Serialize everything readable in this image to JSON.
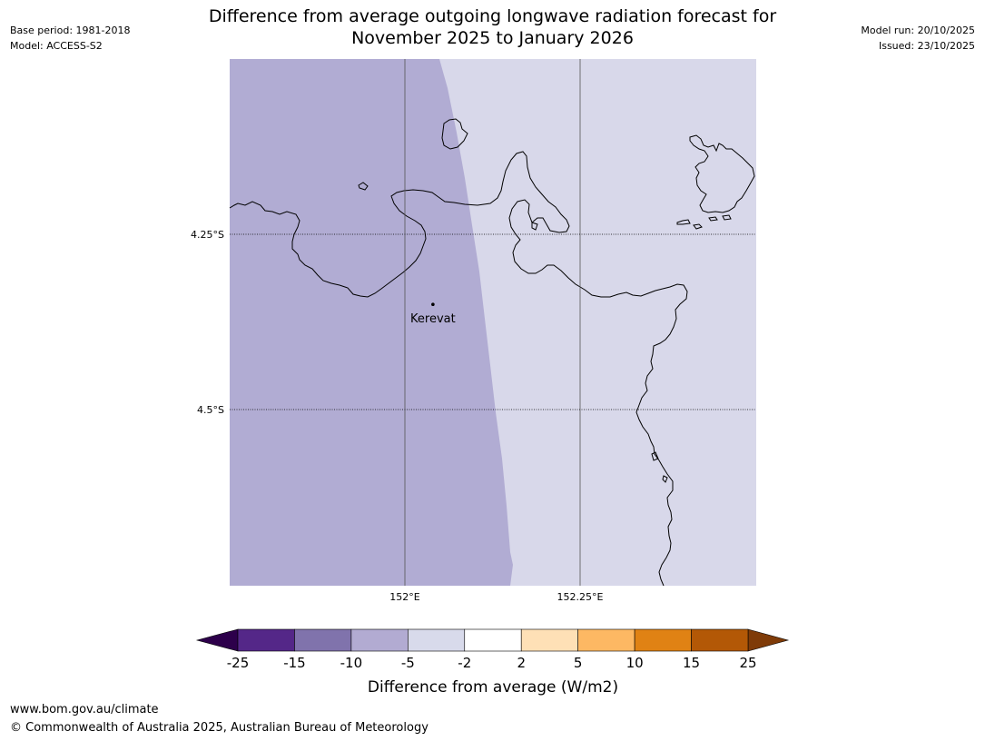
{
  "header": {
    "title_line1": "Difference from average outgoing longwave radiation forecast for",
    "title_line2": "November 2025 to January 2026",
    "base_period": "Base period: 1981-2018",
    "model": "Model: ACCESS-S2",
    "model_run": "Model run: 20/10/2025",
    "issued": "Issued: 23/10/2025"
  },
  "footer": {
    "url": "www.bom.gov.au/climate",
    "copyright": "© Commonwealth of Australia 2025, Australian Bureau of Meteorology"
  },
  "chart_data": {
    "type": "map",
    "lon_ticks": [
      {
        "value": 152.0,
        "label": "152°E"
      },
      {
        "value": 152.25,
        "label": "152.25°E"
      }
    ],
    "lat_ticks": [
      {
        "value": -4.25,
        "label": "4.25°S"
      },
      {
        "value": -4.5,
        "label": "4.5°S"
      }
    ],
    "places": [
      {
        "name": "Kerevat",
        "lon": 152.04,
        "lat": -4.35
      }
    ],
    "regions": [
      {
        "category": "-10 to -5",
        "color": "#b1acd3",
        "area": "west"
      },
      {
        "category": "-5 to -2",
        "color": "#d8d8ea",
        "area": "east"
      }
    ],
    "colorbar": {
      "label": "Difference from average (W/m2)",
      "ticks": [
        "-25",
        "-15",
        "-10",
        "-5",
        "-2",
        "2",
        "5",
        "10",
        "15",
        "25"
      ],
      "under_color": "#2d004b",
      "over_color": "#7f3b08",
      "colors": [
        "#542788",
        "#8073ac",
        "#b2abd2",
        "#d8daeb",
        "#ffffff",
        "#fee0b6",
        "#fdb863",
        "#e08214",
        "#b35806"
      ]
    }
  }
}
